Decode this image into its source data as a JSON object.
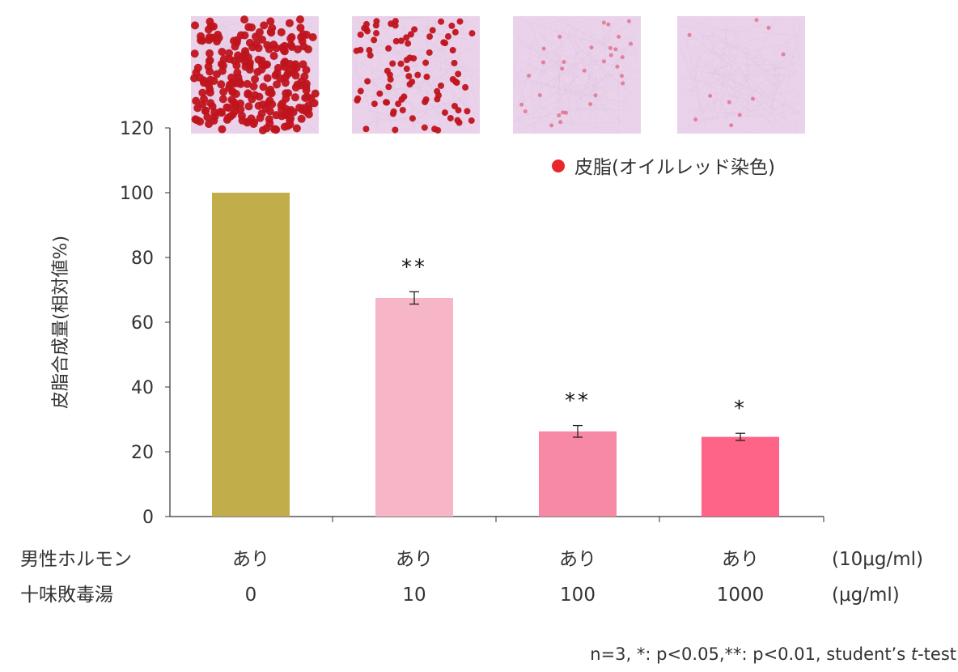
{
  "chart_data": {
    "type": "bar",
    "ylabel": "皮脂合成量(相対値%)",
    "ylim": [
      0,
      120
    ],
    "yticks": [
      "0",
      "20",
      "40",
      "60",
      "80",
      "100",
      "120"
    ],
    "categories": [
      "0",
      "10",
      "100",
      "1000"
    ],
    "values": [
      100,
      67.5,
      26.3,
      24.6
    ],
    "errors": [
      0,
      1.9,
      1.8,
      1.1
    ],
    "significance": [
      "",
      "**",
      "**",
      "*"
    ],
    "colors": [
      "#c2ad4b",
      "#f7b5c8",
      "#f889a5",
      "#fd6487"
    ],
    "legend": {
      "label": "皮脂(オイルレッド染色)",
      "color": "#e8262b",
      "placement": "top-right"
    },
    "row_labels": [
      {
        "label": "男性ホルモン",
        "values": [
          "あり",
          "あり",
          "あり",
          "あり"
        ],
        "unit": "(10μg/ml)"
      },
      {
        "label": "十味敗毒湯",
        "values": [
          "0",
          "10",
          "100",
          "1000"
        ],
        "unit": "(μg/ml)"
      }
    ],
    "micrograph_stain_levels": [
      1.0,
      0.35,
      0.12,
      0.04
    ],
    "footnote": {
      "prefix": "n=3, *: p<0.05,**: p<0.01, student’s ",
      "italic": "t",
      "suffix": "-test"
    }
  }
}
